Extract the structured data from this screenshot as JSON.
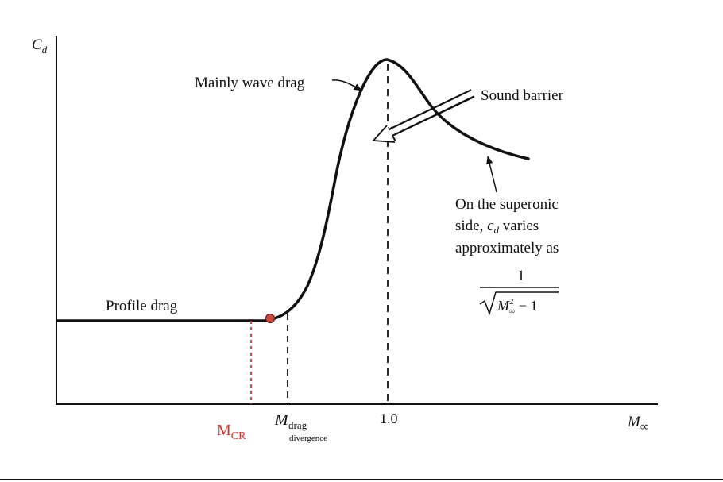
{
  "diagram": {
    "y_axis_label": "C",
    "y_axis_label_sub": "d",
    "x_axis_label": "M",
    "x_axis_label_sub": "∞",
    "x_tick_one": "1.0",
    "mcr_label": "M",
    "mcr_sub": "CR",
    "mdd_label": "M",
    "mdd_sub1": "drag",
    "mdd_sub2": "divergence",
    "profile_drag": "Profile drag",
    "wave_drag": "Mainly wave drag",
    "sound_barrier": "Sound barrier",
    "supersonic_note": [
      "On the superonic",
      "side, ",
      "c",
      "d",
      " varies",
      "approximately as"
    ],
    "formula_num": "1",
    "formula_M": "M",
    "formula_sup": "2",
    "formula_sub": "∞",
    "formula_rest": " − 1"
  },
  "colors": {
    "curve": "#111111",
    "mcr_accent": "#d9302a"
  }
}
